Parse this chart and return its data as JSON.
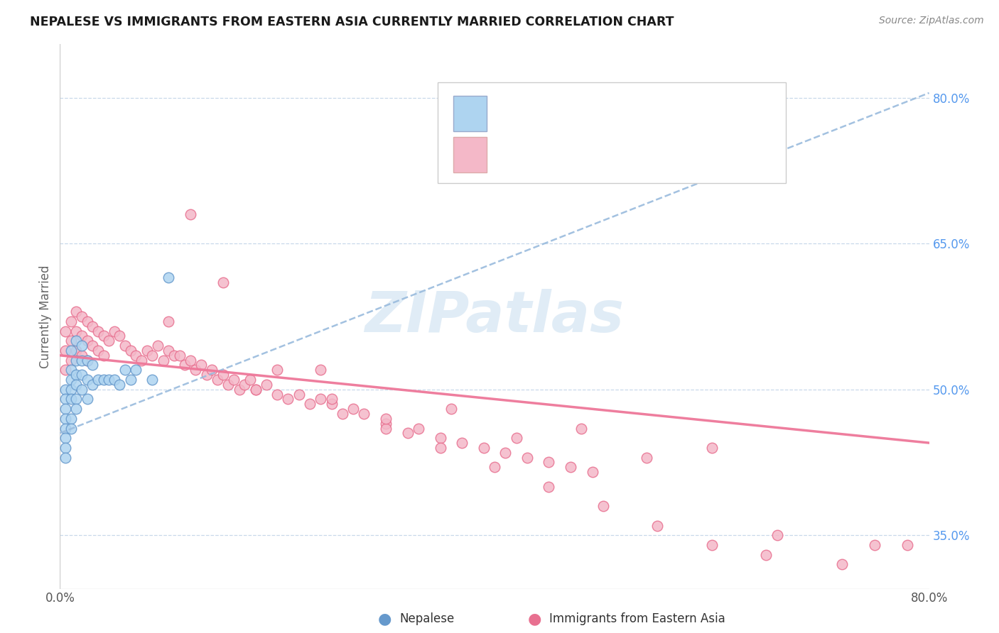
{
  "title": "NEPALESE VS IMMIGRANTS FROM EASTERN ASIA CURRENTLY MARRIED CORRELATION CHART",
  "source_text": "Source: ZipAtlas.com",
  "ylabel": "Currently Married",
  "xlim": [
    0.0,
    0.8
  ],
  "ylim": [
    0.295,
    0.855
  ],
  "ytick_labels_right": [
    "35.0%",
    "50.0%",
    "65.0%",
    "80.0%"
  ],
  "ytick_positions_right": [
    0.35,
    0.5,
    0.65,
    0.8
  ],
  "legend_color1": "#aed4f0",
  "legend_color2": "#f4b8c8",
  "watermark_text": "ZIPatlas",
  "nepalese_color": "#aed4f0",
  "eastern_asia_color": "#f4b8c8",
  "nepalese_edge_color": "#6699cc",
  "eastern_asia_edge_color": "#e87090",
  "trend1_color": "#99bbdd",
  "trend2_color": "#ee7799",
  "background_color": "#ffffff",
  "nepalese_x": [
    0.005,
    0.005,
    0.005,
    0.005,
    0.005,
    0.005,
    0.005,
    0.005,
    0.01,
    0.01,
    0.01,
    0.01,
    0.01,
    0.01,
    0.01,
    0.015,
    0.015,
    0.015,
    0.015,
    0.015,
    0.015,
    0.02,
    0.02,
    0.02,
    0.02,
    0.025,
    0.025,
    0.025,
    0.03,
    0.03,
    0.035,
    0.04,
    0.045,
    0.05,
    0.055,
    0.06,
    0.065,
    0.07,
    0.085,
    0.1
  ],
  "nepalese_y": [
    0.5,
    0.49,
    0.48,
    0.47,
    0.46,
    0.45,
    0.44,
    0.43,
    0.54,
    0.52,
    0.51,
    0.5,
    0.49,
    0.47,
    0.46,
    0.55,
    0.53,
    0.515,
    0.505,
    0.49,
    0.48,
    0.545,
    0.53,
    0.515,
    0.5,
    0.53,
    0.51,
    0.49,
    0.525,
    0.505,
    0.51,
    0.51,
    0.51,
    0.51,
    0.505,
    0.52,
    0.51,
    0.52,
    0.51,
    0.615
  ],
  "eastern_asia_x": [
    0.005,
    0.005,
    0.005,
    0.01,
    0.01,
    0.01,
    0.015,
    0.015,
    0.015,
    0.02,
    0.02,
    0.02,
    0.025,
    0.025,
    0.025,
    0.03,
    0.03,
    0.035,
    0.035,
    0.04,
    0.04,
    0.045,
    0.05,
    0.055,
    0.06,
    0.065,
    0.07,
    0.075,
    0.08,
    0.085,
    0.09,
    0.095,
    0.1,
    0.105,
    0.11,
    0.115,
    0.12,
    0.125,
    0.13,
    0.135,
    0.14,
    0.145,
    0.15,
    0.155,
    0.16,
    0.165,
    0.17,
    0.175,
    0.18,
    0.19,
    0.2,
    0.21,
    0.22,
    0.23,
    0.24,
    0.25,
    0.26,
    0.27,
    0.28,
    0.3,
    0.32,
    0.33,
    0.35,
    0.37,
    0.39,
    0.41,
    0.43,
    0.45,
    0.47,
    0.49,
    0.1,
    0.15,
    0.2,
    0.25,
    0.3,
    0.35,
    0.4,
    0.45,
    0.5,
    0.55,
    0.6,
    0.65,
    0.12,
    0.18,
    0.24,
    0.3,
    0.36,
    0.42,
    0.48,
    0.54,
    0.6,
    0.66,
    0.72,
    0.75,
    0.78
  ],
  "eastern_asia_y": [
    0.56,
    0.54,
    0.52,
    0.57,
    0.55,
    0.53,
    0.58,
    0.56,
    0.54,
    0.575,
    0.555,
    0.535,
    0.57,
    0.55,
    0.53,
    0.565,
    0.545,
    0.56,
    0.54,
    0.555,
    0.535,
    0.55,
    0.56,
    0.555,
    0.545,
    0.54,
    0.535,
    0.53,
    0.54,
    0.535,
    0.545,
    0.53,
    0.54,
    0.535,
    0.535,
    0.525,
    0.53,
    0.52,
    0.525,
    0.515,
    0.52,
    0.51,
    0.515,
    0.505,
    0.51,
    0.5,
    0.505,
    0.51,
    0.5,
    0.505,
    0.495,
    0.49,
    0.495,
    0.485,
    0.49,
    0.485,
    0.475,
    0.48,
    0.475,
    0.465,
    0.455,
    0.46,
    0.45,
    0.445,
    0.44,
    0.435,
    0.43,
    0.425,
    0.42,
    0.415,
    0.57,
    0.61,
    0.52,
    0.49,
    0.46,
    0.44,
    0.42,
    0.4,
    0.38,
    0.36,
    0.34,
    0.33,
    0.68,
    0.5,
    0.52,
    0.47,
    0.48,
    0.45,
    0.46,
    0.43,
    0.44,
    0.35,
    0.32,
    0.34,
    0.34
  ]
}
